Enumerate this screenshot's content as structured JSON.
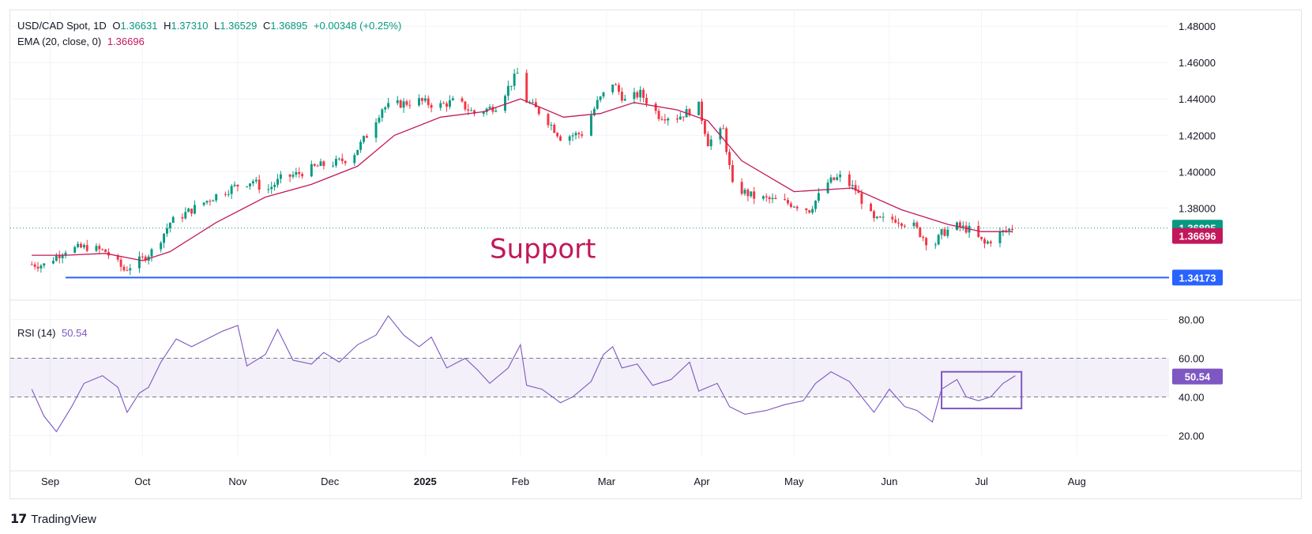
{
  "legend": {
    "symbol": "USD/CAD Spot, 1D",
    "o_label": "O",
    "o": "1.36631",
    "h_label": "H",
    "h": "1.37310",
    "l_label": "L",
    "l": "1.36529",
    "c_label": "C",
    "c": "1.36895",
    "change": "+0.00348 (+0.25%)",
    "ema_label": "EMA (20, close, 0)",
    "ema_value": "1.36696",
    "rsi_label": "RSI (14)",
    "rsi_value": "50.54"
  },
  "annotation": {
    "support_text": "Support"
  },
  "brand": {
    "name": "TradingView"
  },
  "colors": {
    "up": "#089981",
    "down": "#f23645",
    "ema": "#c2185b",
    "rsi": "#7e57c2",
    "support": "#2962ff"
  },
  "chart_data": [
    {
      "type": "candlestick",
      "title": "USD/CAD Spot, 1D",
      "x_ticks": [
        "Sep",
        "Oct",
        "Nov",
        "Dec",
        "2025",
        "Feb",
        "Mar",
        "Apr",
        "May",
        "Jun",
        "Jul",
        "Aug"
      ],
      "y_ticks": [
        "1.48000",
        "1.46000",
        "1.44000",
        "1.42000",
        "1.40000",
        "1.38000"
      ],
      "ylim": [
        1.3345,
        1.484
      ],
      "price_labels": {
        "close": "1.36895",
        "ema": "1.36696",
        "support": "1.34173"
      },
      "support_level": 1.34173,
      "close_path": [
        [
          "2024-08-26",
          1.349
        ],
        [
          "2024-08-30",
          1.3487
        ],
        [
          "2024-09-06",
          1.357
        ],
        [
          "2024-09-13",
          1.3585
        ],
        [
          "2024-09-19",
          1.356
        ],
        [
          "2024-09-25",
          1.346
        ],
        [
          "2024-10-01",
          1.352
        ],
        [
          "2024-10-05",
          1.3575
        ],
        [
          "2024-10-10",
          1.372
        ],
        [
          "2024-10-18",
          1.38
        ],
        [
          "2024-10-25",
          1.387
        ],
        [
          "2024-11-01",
          1.3925
        ],
        [
          "2024-11-06",
          1.395
        ],
        [
          "2024-11-10",
          1.389
        ],
        [
          "2024-11-15",
          1.396
        ],
        [
          "2024-11-21",
          1.399
        ],
        [
          "2024-11-27",
          1.403
        ],
        [
          "2024-12-03",
          1.405
        ],
        [
          "2024-12-08",
          1.408
        ],
        [
          "2024-12-13",
          1.42
        ],
        [
          "2024-12-18",
          1.435
        ],
        [
          "2024-12-23",
          1.437
        ],
        [
          "2024-12-30",
          1.439
        ],
        [
          "2025-01-05",
          1.436
        ],
        [
          "2025-01-11",
          1.439
        ],
        [
          "2025-01-17",
          1.432
        ],
        [
          "2025-01-24",
          1.436
        ],
        [
          "2025-01-31",
          1.454
        ],
        [
          "2025-02-03",
          1.439
        ],
        [
          "2025-02-09",
          1.43
        ],
        [
          "2025-02-14",
          1.419
        ],
        [
          "2025-02-21",
          1.421
        ],
        [
          "2025-02-26",
          1.438
        ],
        [
          "2025-03-03",
          1.449
        ],
        [
          "2025-03-07",
          1.439
        ],
        [
          "2025-03-12",
          1.443
        ],
        [
          "2025-03-18",
          1.431
        ],
        [
          "2025-03-24",
          1.43
        ],
        [
          "2025-03-31",
          1.436
        ],
        [
          "2025-04-03",
          1.416
        ],
        [
          "2025-04-08",
          1.423
        ],
        [
          "2025-04-11",
          1.392
        ],
        [
          "2025-04-18",
          1.386
        ],
        [
          "2025-04-25",
          1.384
        ],
        [
          "2025-05-01",
          1.382
        ],
        [
          "2025-05-06",
          1.379
        ],
        [
          "2025-05-12",
          1.394
        ],
        [
          "2025-05-16",
          1.397
        ],
        [
          "2025-05-21",
          1.39
        ],
        [
          "2025-05-27",
          1.373
        ],
        [
          "2025-06-03",
          1.374
        ],
        [
          "2025-06-09",
          1.37
        ],
        [
          "2025-06-15",
          1.358
        ],
        [
          "2025-06-18",
          1.366
        ],
        [
          "2025-06-23",
          1.37
        ],
        [
          "2025-06-27",
          1.368
        ],
        [
          "2025-07-02",
          1.36
        ],
        [
          "2025-07-07",
          1.366
        ],
        [
          "2025-07-11",
          1.369
        ]
      ],
      "ema_path": [
        [
          "2024-08-26",
          1.354
        ],
        [
          "2024-09-06",
          1.354
        ],
        [
          "2024-09-19",
          1.355
        ],
        [
          "2024-10-01",
          1.351
        ],
        [
          "2024-10-10",
          1.356
        ],
        [
          "2024-10-25",
          1.372
        ],
        [
          "2024-11-10",
          1.386
        ],
        [
          "2024-11-25",
          1.393
        ],
        [
          "2024-12-10",
          1.403
        ],
        [
          "2024-12-22",
          1.42
        ],
        [
          "2025-01-06",
          1.43
        ],
        [
          "2025-01-20",
          1.433
        ],
        [
          "2025-02-01",
          1.44
        ],
        [
          "2025-02-15",
          1.43
        ],
        [
          "2025-02-27",
          1.432
        ],
        [
          "2025-03-10",
          1.438
        ],
        [
          "2025-03-24",
          1.434
        ],
        [
          "2025-04-03",
          1.428
        ],
        [
          "2025-04-14",
          1.406
        ],
        [
          "2025-05-01",
          1.389
        ],
        [
          "2025-05-20",
          1.391
        ],
        [
          "2025-06-05",
          1.379
        ],
        [
          "2025-06-20",
          1.371
        ],
        [
          "2025-07-01",
          1.367
        ],
        [
          "2025-07-11",
          1.367
        ]
      ]
    },
    {
      "type": "line",
      "title": "RSI (14)",
      "series": [
        {
          "name": "RSI (14)"
        }
      ],
      "x_ticks": [
        "Sep",
        "Oct",
        "Nov",
        "Dec",
        "2025",
        "Feb",
        "Mar",
        "Apr",
        "May",
        "Jun",
        "Jul",
        "Aug"
      ],
      "y_ticks": [
        "80.00",
        "60.00",
        "40.00",
        "20.00"
      ],
      "ylim": [
        14,
        86
      ],
      "bands": [
        40,
        60
      ],
      "last_value": "50.54",
      "highlight_box": {
        "x_range": [
          "2025-06-18",
          "2025-07-14"
        ],
        "y_range": [
          34,
          53
        ]
      },
      "points": [
        [
          "2024-08-26",
          44
        ],
        [
          "2024-08-30",
          30
        ],
        [
          "2024-09-03",
          22
        ],
        [
          "2024-09-08",
          35
        ],
        [
          "2024-09-12",
          47
        ],
        [
          "2024-09-18",
          51
        ],
        [
          "2024-09-23",
          45
        ],
        [
          "2024-09-26",
          32
        ],
        [
          "2024-09-30",
          42
        ],
        [
          "2024-10-03",
          45
        ],
        [
          "2024-10-07",
          58
        ],
        [
          "2024-10-12",
          70
        ],
        [
          "2024-10-17",
          66
        ],
        [
          "2024-10-22",
          70
        ],
        [
          "2024-10-27",
          74
        ],
        [
          "2024-11-01",
          77
        ],
        [
          "2024-11-04",
          56
        ],
        [
          "2024-11-10",
          62
        ],
        [
          "2024-11-14",
          75
        ],
        [
          "2024-11-19",
          59
        ],
        [
          "2024-11-25",
          57
        ],
        [
          "2024-11-29",
          63
        ],
        [
          "2024-12-04",
          58
        ],
        [
          "2024-12-10",
          67
        ],
        [
          "2024-12-16",
          72
        ],
        [
          "2024-12-20",
          82
        ],
        [
          "2024-12-25",
          72
        ],
        [
          "2024-12-30",
          66
        ],
        [
          "2025-01-03",
          71
        ],
        [
          "2025-01-08",
          55
        ],
        [
          "2025-01-14",
          60
        ],
        [
          "2025-01-18",
          54
        ],
        [
          "2025-01-22",
          47
        ],
        [
          "2025-01-28",
          55
        ],
        [
          "2025-02-01",
          67
        ],
        [
          "2025-02-03",
          46
        ],
        [
          "2025-02-08",
          44
        ],
        [
          "2025-02-14",
          37
        ],
        [
          "2025-02-18",
          40
        ],
        [
          "2025-02-24",
          48
        ],
        [
          "2025-02-28",
          62
        ],
        [
          "2025-03-03",
          66
        ],
        [
          "2025-03-06",
          55
        ],
        [
          "2025-03-11",
          57
        ],
        [
          "2025-03-16",
          46
        ],
        [
          "2025-03-22",
          49
        ],
        [
          "2025-03-28",
          58
        ],
        [
          "2025-03-31",
          43
        ],
        [
          "2025-04-06",
          47
        ],
        [
          "2025-04-10",
          35
        ],
        [
          "2025-04-15",
          31
        ],
        [
          "2025-04-22",
          33
        ],
        [
          "2025-04-28",
          36
        ],
        [
          "2025-05-04",
          38
        ],
        [
          "2025-05-08",
          47
        ],
        [
          "2025-05-13",
          53
        ],
        [
          "2025-05-19",
          48
        ],
        [
          "2025-05-23",
          40
        ],
        [
          "2025-05-27",
          32
        ],
        [
          "2025-06-01",
          44
        ],
        [
          "2025-06-06",
          35
        ],
        [
          "2025-06-10",
          33
        ],
        [
          "2025-06-15",
          27
        ],
        [
          "2025-06-18",
          44
        ],
        [
          "2025-06-23",
          49
        ],
        [
          "2025-06-26",
          40
        ],
        [
          "2025-06-30",
          38
        ],
        [
          "2025-07-04",
          40
        ],
        [
          "2025-07-08",
          47
        ],
        [
          "2025-07-12",
          51
        ]
      ]
    }
  ]
}
